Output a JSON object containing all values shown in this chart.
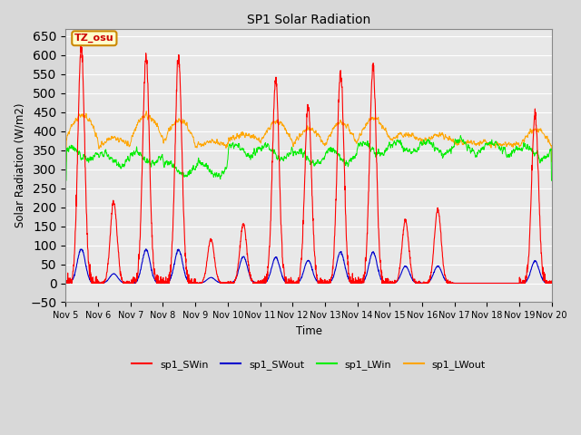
{
  "title": "SP1 Solar Radiation",
  "xlabel": "Time",
  "ylabel": "Solar Radiation (W/m2)",
  "ylim": [
    -50,
    670
  ],
  "yticks": [
    -50,
    0,
    50,
    100,
    150,
    200,
    250,
    300,
    350,
    400,
    450,
    500,
    550,
    600,
    650
  ],
  "xtick_labels": [
    "Nov 5",
    "Nov 6",
    "Nov 7",
    "Nov 8",
    "Nov 9",
    "Nov 10",
    "Nov 11",
    "Nov 12",
    "Nov 13",
    "Nov 14",
    "Nov 15",
    "Nov 16",
    "Nov 17",
    "Nov 18",
    "Nov 19",
    "Nov 20"
  ],
  "colors": {
    "SWin": "#ff0000",
    "SWout": "#0000cc",
    "LWin": "#00ee00",
    "LWout": "#ffa500"
  },
  "legend_labels": [
    "sp1_SWin",
    "sp1_SWout",
    "sp1_LWin",
    "sp1_LWout"
  ],
  "fig_bg_color": "#d8d8d8",
  "plot_bg_color": "#e8e8e8",
  "annotation_text": "TZ_osu",
  "annotation_color": "#cc0000",
  "annotation_bg": "#ffffcc",
  "annotation_border": "#cc8800",
  "n_days": 15,
  "points_per_day": 144,
  "day_peaks_SWin": [
    620,
    215,
    595,
    590,
    115,
    155,
    535,
    465,
    560,
    570,
    165,
    195,
    0,
    0,
    445
  ],
  "day_peaks_SWout": [
    90,
    25,
    88,
    88,
    15,
    70,
    68,
    60,
    82,
    82,
    45,
    45,
    0,
    0,
    58
  ],
  "lw_in_base": [
    340,
    325,
    330,
    300,
    300,
    350,
    345,
    330,
    335,
    355,
    360,
    355,
    360,
    355,
    345
  ],
  "lw_out_base": [
    380,
    360,
    380,
    370,
    360,
    375,
    370,
    360,
    365,
    375,
    375,
    370,
    370,
    365,
    360
  ]
}
